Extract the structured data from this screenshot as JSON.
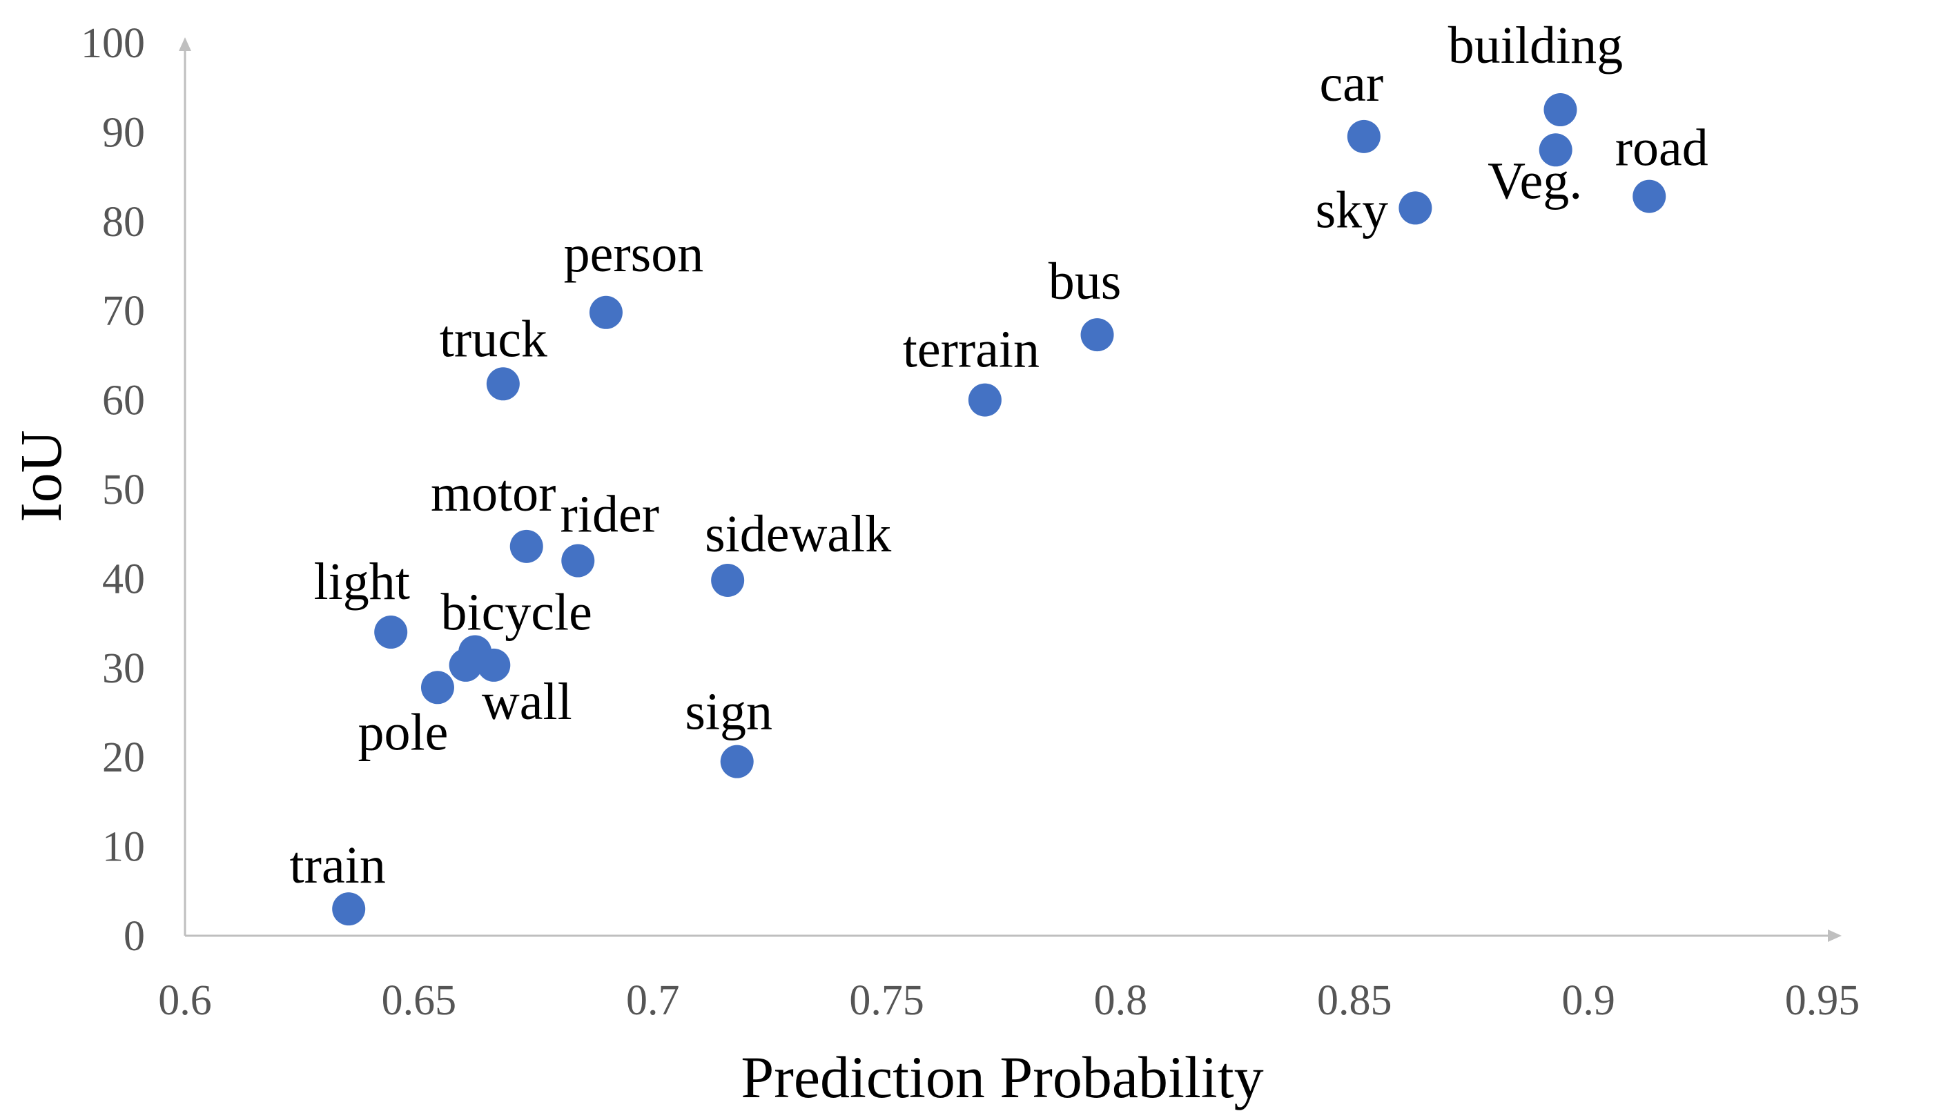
{
  "chart_data": {
    "type": "scatter",
    "title": "",
    "xlabel": "Prediction Probability",
    "ylabel": "IoU",
    "xlim": [
      0.6,
      0.95
    ],
    "ylim": [
      0,
      100
    ],
    "xticks": [
      "0.6",
      "0.65",
      "0.7",
      "0.75",
      "0.8",
      "0.85",
      "0.9",
      "0.95"
    ],
    "yticks": [
      "0",
      "10",
      "20",
      "30",
      "40",
      "50",
      "60",
      "70",
      "80",
      "90",
      "100"
    ],
    "grid": false,
    "legend": "none",
    "marker_color": "#4472c4",
    "points": [
      {
        "label": "building",
        "x": 0.894,
        "y": 92.5
      },
      {
        "label": "car",
        "x": 0.852,
        "y": 89.5
      },
      {
        "label": "Veg.",
        "x": 0.893,
        "y": 88.0
      },
      {
        "label": "road",
        "x": 0.913,
        "y": 82.8
      },
      {
        "label": "sky",
        "x": 0.863,
        "y": 81.5
      },
      {
        "label": "person",
        "x": 0.69,
        "y": 69.8
      },
      {
        "label": "bus",
        "x": 0.795,
        "y": 67.3
      },
      {
        "label": "truck",
        "x": 0.668,
        "y": 61.8
      },
      {
        "label": "terrain",
        "x": 0.771,
        "y": 60.0
      },
      {
        "label": "motor",
        "x": 0.673,
        "y": 43.6
      },
      {
        "label": "rider",
        "x": 0.684,
        "y": 42.0
      },
      {
        "label": "sidewalk",
        "x": 0.716,
        "y": 39.8
      },
      {
        "label": "light",
        "x": 0.644,
        "y": 34.0
      },
      {
        "label": "bicycle",
        "x": 0.662,
        "y": 31.8
      },
      {
        "label": "",
        "x": 0.66,
        "y": 30.3
      },
      {
        "label": "wall",
        "x": 0.666,
        "y": 30.3
      },
      {
        "label": "pole",
        "x": 0.654,
        "y": 27.8
      },
      {
        "label": "sign",
        "x": 0.718,
        "y": 19.5
      },
      {
        "label": "train",
        "x": 0.635,
        "y": 3.0
      }
    ]
  }
}
